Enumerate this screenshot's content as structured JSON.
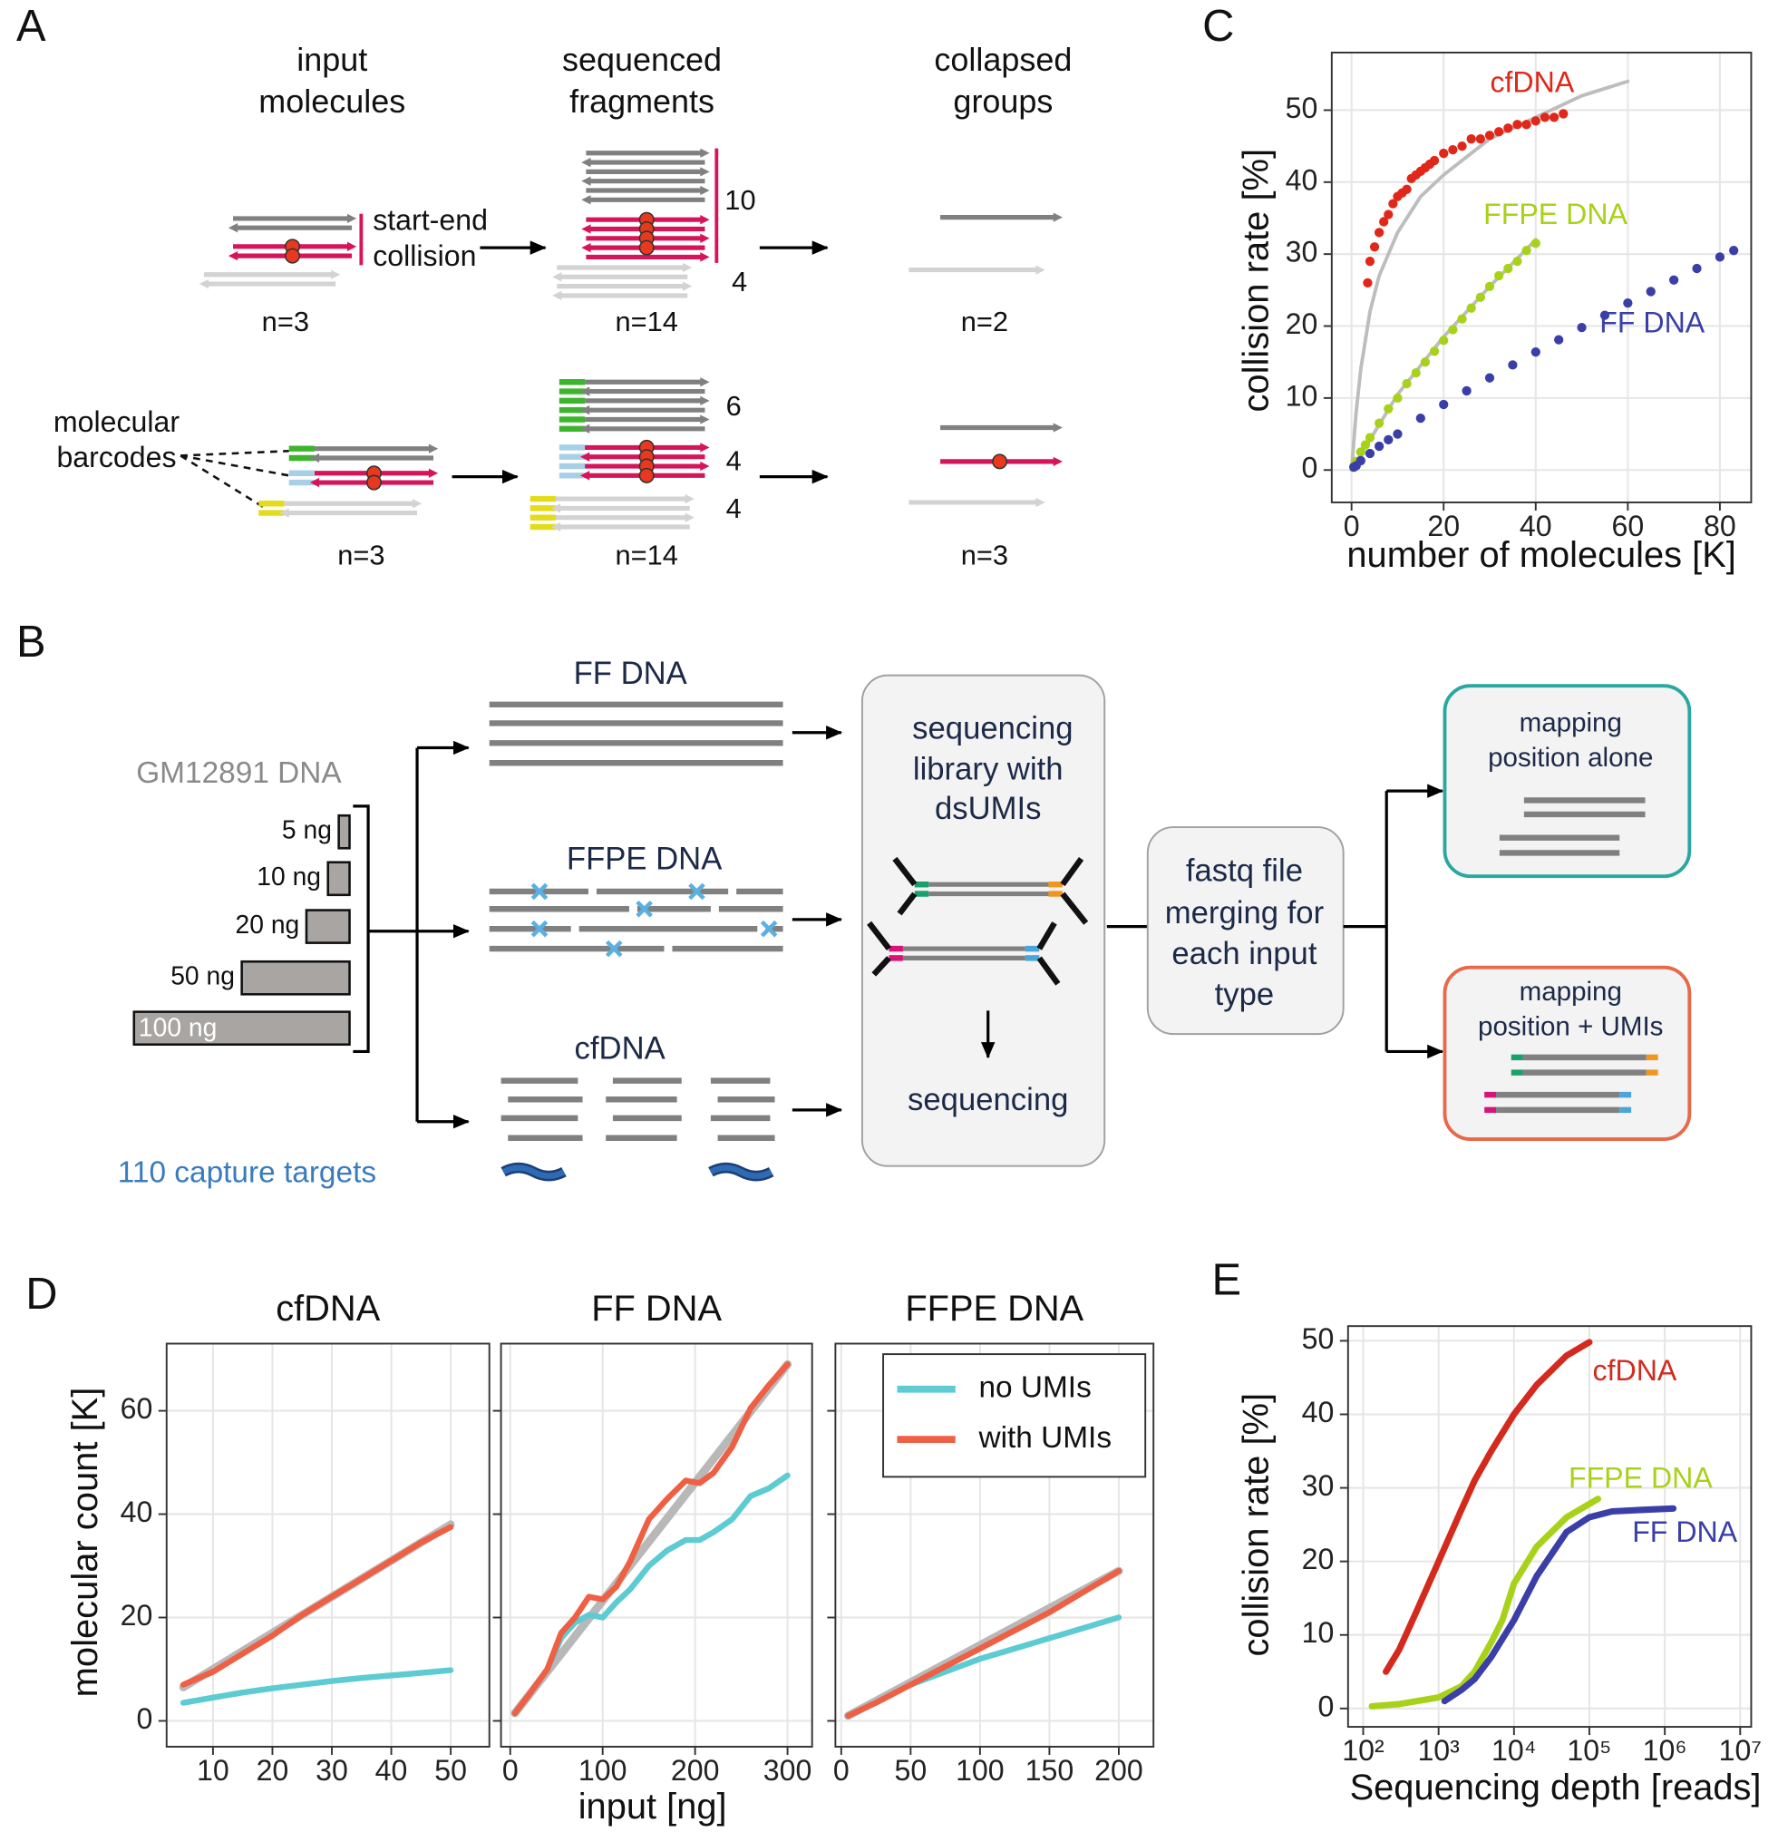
{
  "panel_labels": [
    "A",
    "B",
    "C",
    "D",
    "E"
  ],
  "panel_a": {
    "column_headers": [
      [
        "input",
        "molecules"
      ],
      [
        "sequenced",
        "fragments"
      ],
      [
        "collapsed",
        "groups"
      ]
    ],
    "collision_label": [
      "start-end",
      "collision"
    ],
    "barcode_label": [
      "molecular",
      "barcodes"
    ],
    "row_1_counts": [
      "n=3",
      "n=14",
      "n=2"
    ],
    "row_1_group_sizes": [
      10,
      4
    ],
    "row_2_counts": [
      "n=3",
      "n=14",
      "n=3"
    ],
    "row_2_group_sizes": [
      6,
      4,
      4
    ]
  },
  "panel_b": {
    "source": "GM12891 DNA",
    "amounts": [
      {
        "value": 5,
        "label": "5 ng"
      },
      {
        "value": 10,
        "label": "10 ng"
      },
      {
        "value": 20,
        "label": "20 ng"
      },
      {
        "value": 50,
        "label": "50 ng"
      },
      {
        "value": 100,
        "label": "100 ng"
      }
    ],
    "targets": "110 capture targets",
    "input_types": [
      "FF DNA",
      "FFPE DNA",
      "cfDNA"
    ],
    "library": [
      "sequencing",
      "library with",
      "dsUMIs"
    ],
    "sequencing": "sequencing",
    "merging": [
      "fastq file",
      "merging for",
      "each input",
      "type"
    ],
    "outputs": [
      [
        "mapping",
        "position alone"
      ],
      [
        "mapping",
        "position + UMIs"
      ]
    ]
  },
  "chart_data": [
    {
      "type": "scatter",
      "xlabel": "number of molecules [K]",
      "ylabel": "collision rate [%]",
      "xlim": [
        -4.3,
        86.8
      ],
      "ylim": [
        -4.5,
        58
      ],
      "xticks": [
        0,
        20,
        40,
        60,
        80
      ],
      "yticks": [
        0,
        10,
        20,
        30,
        40,
        50
      ],
      "grid": true,
      "series": [
        {
          "name": "cfDNA",
          "color": "#e0271a",
          "x": [
            3.5,
            4,
            5,
            6,
            7,
            8,
            9,
            10,
            11,
            12,
            13,
            14,
            15,
            16,
            17,
            18,
            20,
            22,
            24,
            26,
            28,
            30,
            32,
            34,
            36,
            38,
            40,
            42,
            44,
            46
          ],
          "y": [
            26,
            29,
            31,
            33,
            34.5,
            35.5,
            37,
            38,
            38.5,
            39,
            40.5,
            41,
            41.5,
            42,
            42.5,
            43,
            44,
            44.5,
            45,
            46,
            46,
            46.5,
            47,
            47.5,
            48,
            48,
            48.5,
            49,
            49,
            49.5
          ]
        },
        {
          "name": "FFPE DNA",
          "color": "#a8d21a",
          "x": [
            0.5,
            1,
            2,
            3,
            4,
            6,
            8,
            10,
            12,
            14,
            16,
            18,
            20,
            22,
            24,
            26,
            28,
            30,
            32,
            34,
            36,
            38,
            40
          ],
          "y": [
            0.5,
            1.2,
            2.5,
            3.5,
            4.5,
            6.5,
            8.5,
            10,
            12,
            13.5,
            15,
            16.5,
            18,
            19.5,
            21,
            22.5,
            24,
            25.5,
            27,
            28,
            29,
            30.5,
            31.5
          ]
        },
        {
          "name": "FF DNA",
          "color": "#3a3fa8",
          "x": [
            0.5,
            1,
            2,
            4,
            6,
            8,
            10,
            15,
            20,
            25,
            30,
            35,
            40,
            45,
            50,
            55,
            60,
            65,
            70,
            75,
            80,
            83
          ],
          "y": [
            0.4,
            0.6,
            1.3,
            2.3,
            3.3,
            4.2,
            5,
            7.2,
            9.1,
            11,
            12.8,
            14.6,
            16.4,
            18.1,
            19.8,
            21.5,
            23.2,
            24.8,
            26.4,
            28,
            29.6,
            30.5
          ]
        }
      ],
      "fits": [
        {
          "color": "#bdbdbd",
          "x": [
            0,
            1,
            2,
            4,
            6,
            10,
            15,
            20,
            30,
            40,
            50,
            60
          ],
          "y": [
            0,
            8,
            14,
            22,
            27,
            33,
            38,
            41,
            46,
            49,
            52,
            54
          ]
        },
        {
          "color": "#bdbdbd",
          "x": [
            0,
            10,
            20,
            30,
            40
          ],
          "y": [
            0,
            10.5,
            18.5,
            25.5,
            32
          ]
        }
      ]
    },
    {
      "type": "line",
      "xlabel": "input [ng]",
      "ylabel": "molecular count [K]",
      "ylim": [
        -5,
        73
      ],
      "yticks": [
        0,
        20,
        40,
        60
      ],
      "grid": true,
      "legend": "top-right",
      "reference_color": "#b8b8b8",
      "series": [
        {
          "name": "no UMIs",
          "color": "#5ccbd2"
        },
        {
          "name": "with UMIs",
          "color": "#ee5f43"
        }
      ],
      "facets": [
        {
          "title": "cfDNA",
          "xlim": [
            2.2,
            56.5
          ],
          "xticks": [
            10,
            20,
            30,
            40,
            50
          ],
          "x": [
            5,
            10,
            15,
            20,
            25,
            30,
            35,
            40,
            45,
            50
          ],
          "values": [
            [
              3.5,
              4.5,
              5.5,
              6.3,
              7,
              7.7,
              8.3,
              8.8,
              9.3,
              9.8
            ],
            [
              7,
              9.5,
              13,
              16.5,
              20.5,
              24,
              27.5,
              31,
              34.5,
              37.5
            ]
          ],
          "reference": {
            "x": [
              5,
              50
            ],
            "y": [
              6.5,
              38
            ]
          }
        },
        {
          "title": "FF DNA",
          "xlim": [
            -10,
            326.6
          ],
          "xticks": [
            0,
            100,
            200,
            300
          ],
          "x": [
            5,
            20,
            40,
            55,
            70,
            85,
            100,
            115,
            130,
            150,
            170,
            190,
            205,
            220,
            240,
            260,
            280,
            300
          ],
          "values": [
            [
              1.5,
              5,
              10,
              16,
              19,
              20.5,
              20,
              23,
              25.5,
              30,
              33,
              35,
              35,
              36.5,
              39,
              43.5,
              45,
              47.5
            ],
            [
              1.5,
              5,
              10,
              17,
              20,
              24,
              23.5,
              26,
              31,
              39,
              43,
              46.5,
              46,
              48,
              53,
              60.5,
              65,
              69
            ]
          ],
          "reference": {
            "x": [
              5,
              300
            ],
            "y": [
              1.5,
              69
            ]
          }
        },
        {
          "title": "FFPE DNA",
          "xlim": [
            -4.2,
            225
          ],
          "xticks": [
            0,
            50,
            100,
            150,
            200
          ],
          "x": [
            5,
            25,
            50,
            75,
            100,
            125,
            150,
            175,
            200
          ],
          "values": [
            [
              1,
              3.5,
              7,
              9.5,
              12,
              14,
              16,
              18,
              20
            ],
            [
              1,
              3.5,
              7,
              10.5,
              14,
              17.5,
              21,
              25,
              29
            ]
          ],
          "reference": {
            "x": [
              5,
              200
            ],
            "y": [
              1,
              29
            ]
          }
        }
      ]
    },
    {
      "type": "line",
      "xlabel": "Sequencing depth [reads]",
      "ylabel": "collision rate [%]",
      "log_x": true,
      "xlim": [
        63,
        14000000
      ],
      "ylim": [
        -2.5,
        52
      ],
      "xticks": [
        {
          "value": 100,
          "label": "10²"
        },
        {
          "value": 1000,
          "label": "10³"
        },
        {
          "value": 10000,
          "label": "10⁴"
        },
        {
          "value": 100000,
          "label": "10⁵"
        },
        {
          "value": 1000000,
          "label": "10⁶"
        },
        {
          "value": 10000000,
          "label": "10⁷"
        }
      ],
      "yticks": [
        0,
        10,
        20,
        30,
        40,
        50
      ],
      "grid": true,
      "series": [
        {
          "name": "cfDNA",
          "color": "#d42a1e",
          "x": [
            200,
            300,
            500,
            1000,
            2000,
            3000,
            5000,
            10000,
            20000,
            50000,
            100000
          ],
          "values": [
            5,
            8,
            13,
            20,
            27,
            31,
            35,
            40,
            44,
            48,
            49.8
          ]
        },
        {
          "name": "FFPE DNA",
          "color": "#a8d21a",
          "x": [
            130,
            300,
            1000,
            2000,
            3000,
            5000,
            7000,
            10000,
            20000,
            50000,
            130000
          ],
          "values": [
            0.3,
            0.6,
            1.5,
            3,
            5,
            9,
            12,
            17,
            22,
            26,
            28.5
          ]
        },
        {
          "name": "FF DNA",
          "color": "#3a3fa8",
          "x": [
            1200,
            2000,
            3000,
            5000,
            10000,
            20000,
            50000,
            100000,
            200000,
            500000,
            1300000
          ],
          "values": [
            1,
            2.5,
            4,
            7,
            12,
            18,
            24,
            26,
            26.8,
            27,
            27.2
          ]
        }
      ]
    }
  ]
}
